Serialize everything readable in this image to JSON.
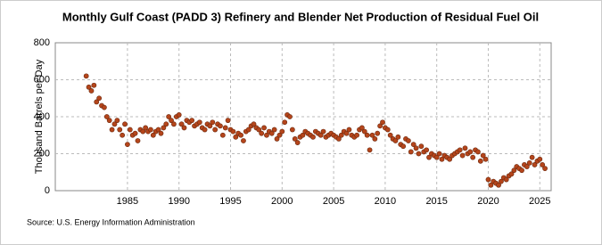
{
  "chart_data": {
    "type": "scatter",
    "title": "Monthly Gulf Coast (PADD 3) Refinery and Blender Net Production of Residual Fuel Oil",
    "y_label": "Thousand Barrels per Day",
    "source": "Source: U.S. Energy Information Administration",
    "xlim": [
      1978,
      2026.1
    ],
    "xticks": [
      1985,
      1990,
      1995,
      2000,
      2005,
      2010,
      2015,
      2020,
      2025
    ],
    "ylim": [
      0,
      800
    ],
    "yticks": [
      0,
      200,
      400,
      600,
      800
    ],
    "grid": true,
    "series": [
      {
        "name": "Residual Fuel Oil",
        "color": "#b5451b",
        "x": [
          1981,
          1981.25,
          1981.5,
          1981.75,
          1982,
          1982.25,
          1982.5,
          1982.75,
          1983,
          1983.25,
          1983.5,
          1983.75,
          1984,
          1984.25,
          1984.5,
          1984.75,
          1985,
          1985.25,
          1985.5,
          1985.75,
          1986,
          1986.25,
          1986.5,
          1986.75,
          1987,
          1987.25,
          1987.5,
          1987.75,
          1988,
          1988.25,
          1988.5,
          1988.75,
          1989,
          1989.25,
          1989.5,
          1989.75,
          1990,
          1990.25,
          1990.5,
          1990.75,
          1991,
          1991.25,
          1991.5,
          1991.75,
          1992,
          1992.25,
          1992.5,
          1992.75,
          1993,
          1993.25,
          1993.5,
          1993.75,
          1994,
          1994.25,
          1994.5,
          1994.75,
          1995,
          1995.25,
          1995.5,
          1995.75,
          1996,
          1996.25,
          1996.5,
          1996.75,
          1997,
          1997.25,
          1997.5,
          1997.75,
          1998,
          1998.25,
          1998.5,
          1998.75,
          1999,
          1999.25,
          1999.5,
          1999.75,
          2000,
          2000.25,
          2000.5,
          2000.75,
          2001,
          2001.25,
          2001.5,
          2001.75,
          2002,
          2002.25,
          2002.5,
          2002.75,
          2003,
          2003.25,
          2003.5,
          2003.75,
          2004,
          2004.25,
          2004.5,
          2004.75,
          2005,
          2005.25,
          2005.5,
          2005.75,
          2006,
          2006.25,
          2006.5,
          2006.75,
          2007,
          2007.25,
          2007.5,
          2007.75,
          2008,
          2008.25,
          2008.5,
          2008.75,
          2009,
          2009.25,
          2009.5,
          2009.75,
          2010,
          2010.25,
          2010.5,
          2010.75,
          2011,
          2011.25,
          2011.5,
          2011.75,
          2012,
          2012.25,
          2012.5,
          2012.75,
          2013,
          2013.25,
          2013.5,
          2013.75,
          2014,
          2014.25,
          2014.5,
          2014.75,
          2015,
          2015.25,
          2015.5,
          2015.75,
          2016,
          2016.25,
          2016.5,
          2016.75,
          2017,
          2017.25,
          2017.5,
          2017.75,
          2018,
          2018.25,
          2018.5,
          2018.75,
          2019,
          2019.25,
          2019.5,
          2019.75,
          2020,
          2020.25,
          2020.5,
          2020.75,
          2021,
          2021.25,
          2021.5,
          2021.75,
          2022,
          2022.25,
          2022.5,
          2022.75,
          2023,
          2023.25,
          2023.5,
          2023.75,
          2024,
          2024.25,
          2024.5,
          2024.75,
          2025,
          2025.25,
          2025.5
        ],
        "values": [
          620,
          560,
          540,
          570,
          480,
          500,
          460,
          450,
          400,
          380,
          330,
          360,
          380,
          330,
          300,
          360,
          250,
          330,
          300,
          310,
          270,
          330,
          320,
          340,
          320,
          330,
          300,
          320,
          330,
          310,
          340,
          360,
          400,
          380,
          360,
          400,
          410,
          360,
          340,
          380,
          370,
          380,
          350,
          360,
          370,
          340,
          330,
          360,
          350,
          370,
          330,
          360,
          350,
          300,
          340,
          380,
          330,
          320,
          290,
          310,
          300,
          270,
          320,
          330,
          350,
          360,
          340,
          330,
          310,
          340,
          300,
          320,
          310,
          330,
          280,
          300,
          320,
          370,
          410,
          400,
          330,
          280,
          260,
          290,
          300,
          320,
          310,
          300,
          290,
          320,
          310,
          300,
          320,
          290,
          300,
          310,
          300,
          290,
          280,
          300,
          320,
          310,
          330,
          300,
          290,
          300,
          330,
          340,
          320,
          300,
          220,
          300,
          280,
          310,
          350,
          370,
          340,
          330,
          300,
          280,
          270,
          290,
          250,
          240,
          280,
          270,
          210,
          250,
          230,
          200,
          240,
          210,
          220,
          180,
          200,
          190,
          180,
          200,
          170,
          190,
          180,
          170,
          190,
          200,
          210,
          220,
          190,
          230,
          200,
          210,
          180,
          220,
          210,
          160,
          190,
          170,
          60,
          30,
          50,
          40,
          30,
          50,
          70,
          60,
          80,
          90,
          110,
          130,
          120,
          110,
          140,
          130,
          150,
          180,
          140,
          160,
          170,
          140,
          120
        ]
      }
    ]
  }
}
